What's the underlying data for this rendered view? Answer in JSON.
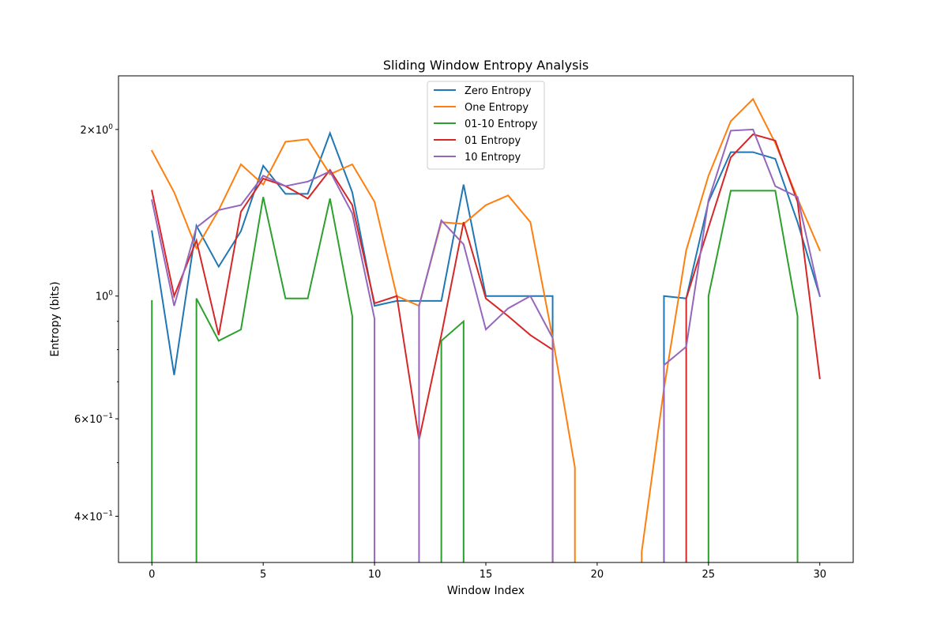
{
  "chart_data": {
    "type": "line",
    "title": "Sliding Window Entropy Analysis",
    "xlabel": "Window Index",
    "ylabel": "Entropy (bits)",
    "yscale": "log",
    "xlim": [
      -1.5,
      31.5
    ],
    "ylim": [
      0.33,
      2.5
    ],
    "x_ticks": [
      0,
      5,
      10,
      15,
      20,
      25,
      30
    ],
    "x_tick_labels": [
      "0",
      "5",
      "10",
      "15",
      "20",
      "25",
      "30"
    ],
    "y_major_ticks": [
      {
        "value": 0.4,
        "mantissa": "4",
        "exponent": "−1"
      },
      {
        "value": 0.6,
        "mantissa": "6",
        "exponent": "−1"
      },
      {
        "value": 1.0,
        "mantissa": "",
        "exponent": "0"
      },
      {
        "value": 2.0,
        "mantissa": "2",
        "exponent": "0"
      }
    ],
    "y_minor_ticks": [
      0.5,
      0.7,
      0.8,
      0.9
    ],
    "grid": false,
    "legend_position": "top-center",
    "series": [
      {
        "name": "Zero Entropy",
        "color": "#1f77b4",
        "x": [
          0,
          1,
          2,
          3,
          4,
          5,
          6,
          7,
          8,
          9,
          10,
          11,
          12,
          13,
          14,
          15,
          16,
          17,
          18,
          18,
          23,
          23,
          24,
          25,
          26,
          27,
          28,
          29,
          30
        ],
        "y": [
          1.31,
          0.72,
          1.34,
          1.13,
          1.31,
          1.72,
          1.53,
          1.53,
          1.97,
          1.54,
          0.96,
          0.98,
          0.98,
          0.98,
          1.59,
          1.0,
          1.0,
          1.0,
          1.0,
          0.25,
          0.25,
          1.0,
          0.99,
          1.48,
          1.82,
          1.82,
          1.77,
          1.36,
          1.0
        ]
      },
      {
        "name": "One Entropy",
        "color": "#ff7f0e",
        "x": [
          0,
          1,
          2,
          3,
          4,
          5,
          6,
          7,
          8,
          9,
          10,
          11,
          12,
          13,
          14,
          15,
          16,
          17,
          18,
          19,
          19,
          22,
          22,
          23,
          24,
          25,
          26,
          27,
          28,
          29,
          30
        ],
        "y": [
          1.83,
          1.54,
          1.22,
          1.43,
          1.73,
          1.59,
          1.9,
          1.92,
          1.66,
          1.73,
          1.48,
          1.0,
          0.96,
          1.36,
          1.35,
          1.46,
          1.52,
          1.36,
          0.84,
          0.49,
          0.25,
          0.25,
          0.345,
          0.68,
          1.21,
          1.65,
          2.07,
          2.27,
          1.89,
          1.5,
          1.21
        ]
      },
      {
        "name": "01-10 Entropy",
        "color": "#2ca02c",
        "x": [
          0,
          0,
          2,
          2,
          3,
          4,
          5,
          6,
          7,
          8,
          9,
          9,
          13,
          13,
          14,
          14,
          25,
          25,
          26,
          27,
          28,
          29,
          29
        ],
        "y": [
          0.98,
          0.25,
          0.25,
          0.99,
          0.83,
          0.87,
          1.51,
          0.99,
          0.99,
          1.5,
          0.92,
          0.25,
          0.25,
          0.83,
          0.9,
          0.25,
          0.25,
          1.0,
          1.55,
          1.55,
          1.55,
          0.92,
          0.25
        ]
      },
      {
        "name": "01 Entropy",
        "color": "#d62728",
        "x": [
          0,
          1,
          2,
          3,
          4,
          5,
          6,
          7,
          8,
          9,
          10,
          11,
          12,
          13,
          14,
          15,
          16,
          17,
          18,
          18,
          24,
          24,
          25,
          26,
          27,
          28,
          29,
          30
        ],
        "y": [
          1.55,
          1.0,
          1.26,
          0.85,
          1.42,
          1.63,
          1.58,
          1.5,
          1.69,
          1.46,
          0.97,
          1.0,
          0.55,
          0.85,
          1.36,
          0.99,
          0.92,
          0.85,
          0.8,
          0.25,
          0.25,
          0.99,
          1.33,
          1.78,
          1.96,
          1.91,
          1.48,
          0.71
        ]
      },
      {
        "name": "10 Entropy",
        "color": "#9467bd",
        "x": [
          0,
          1,
          2,
          3,
          4,
          5,
          6,
          7,
          8,
          9,
          10,
          10,
          12,
          12,
          13,
          14,
          15,
          16,
          17,
          18,
          18,
          23,
          23,
          24,
          25,
          26,
          27,
          28,
          29,
          30
        ],
        "y": [
          1.49,
          0.96,
          1.33,
          1.43,
          1.46,
          1.65,
          1.58,
          1.61,
          1.68,
          1.41,
          0.91,
          0.25,
          0.25,
          0.96,
          1.37,
          1.24,
          0.87,
          0.95,
          1.0,
          0.84,
          0.25,
          0.25,
          0.75,
          0.81,
          1.49,
          1.99,
          2.0,
          1.58,
          1.51,
          1.0
        ]
      }
    ]
  }
}
